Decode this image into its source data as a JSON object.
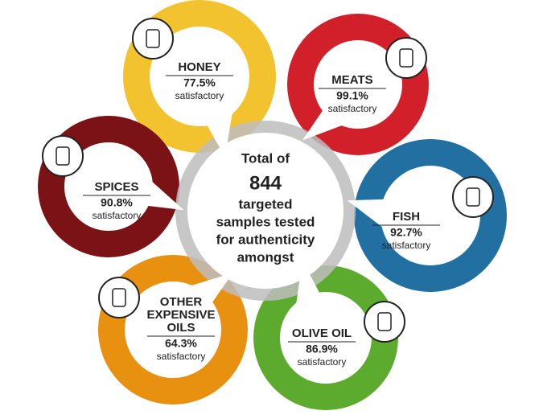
{
  "center": {
    "lines": [
      "Total of",
      "844",
      "targeted",
      "samples tested",
      "for authenticity",
      "amongst"
    ]
  },
  "nodes": [
    {
      "label": [
        "HONEY"
      ],
      "value": "77.5%",
      "note": "satisfactory"
    },
    {
      "label": [
        "MEATS"
      ],
      "value": "99.1%",
      "note": "satisfactory"
    },
    {
      "label": [
        "SPICES"
      ],
      "value": "90.8%",
      "note": "satisfactory"
    },
    {
      "label": [
        "FISH"
      ],
      "value": "92.7%",
      "note": "satisfactory"
    },
    {
      "label": [
        "OTHER",
        "EXPENSIVE",
        "OILS"
      ],
      "value": "64.3%",
      "note": "satisfactory"
    },
    {
      "label": [
        "OLIVE OIL"
      ],
      "value": "86.9%",
      "note": "satisfactory"
    }
  ]
}
